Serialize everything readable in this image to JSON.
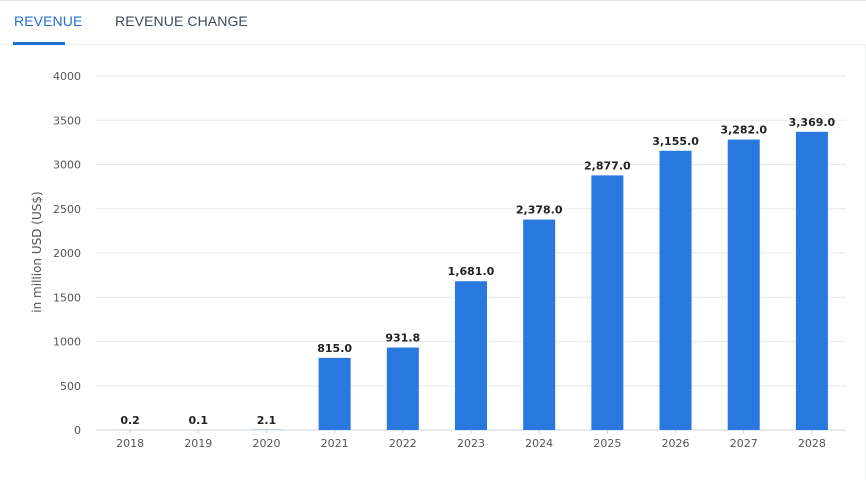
{
  "tabs": {
    "revenue": "REVENUE",
    "revenue_change": "REVENUE CHANGE"
  },
  "colors": {
    "accent": "#1f6fd1",
    "bar": "#2878df",
    "grid": "#e6e9ed",
    "axis_text": "#555555",
    "label_text": "#222222"
  },
  "chart_data": {
    "type": "bar",
    "categories": [
      "2018",
      "2019",
      "2020",
      "2021",
      "2022",
      "2023",
      "2024",
      "2025",
      "2026",
      "2027",
      "2028"
    ],
    "values": [
      0.2,
      0.1,
      2.1,
      815.0,
      931.8,
      1681.0,
      2378.0,
      2877.0,
      3155.0,
      3282.0,
      3369.0
    ],
    "value_labels": [
      "0.2",
      "0.1",
      "2.1",
      "815.0",
      "931.8",
      "1,681.0",
      "2,378.0",
      "2,877.0",
      "3,155.0",
      "3,282.0",
      "3,369.0"
    ],
    "ylabel": "in million USD (US$)",
    "ylim": [
      0,
      4000
    ],
    "yticks": [
      "0",
      "500",
      "1000",
      "1500",
      "2000",
      "2500",
      "3000",
      "3500",
      "4000"
    ],
    "grid": true
  }
}
